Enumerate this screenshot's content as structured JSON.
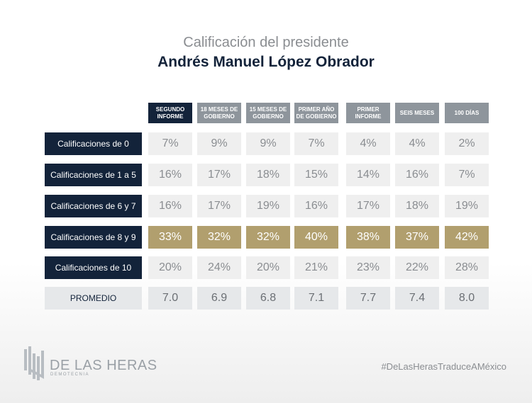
{
  "header": {
    "title_line1": "Calificación del presidente",
    "title_line2": "Andrés Manuel López Obrador"
  },
  "chart_data": {
    "type": "table",
    "columns": [
      "SEGUNDO INFORME",
      "18 MESES DE GOBIERNO",
      "15 MESES DE GOBIERNO",
      "PRIMER AÑO DE GOBIERNO",
      "PRIMER INFORME",
      "SEIS MESES",
      "100 DÍAS"
    ],
    "rows": [
      {
        "label": "Calificaciones de 0",
        "values": [
          "7%",
          "9%",
          "9%",
          "7%",
          "4%",
          "4%",
          "2%"
        ]
      },
      {
        "label": "Calificaciones de 1 a 5",
        "values": [
          "16%",
          "17%",
          "18%",
          "15%",
          "14%",
          "16%",
          "7%"
        ]
      },
      {
        "label": "Calificaciones de 6 y 7",
        "values": [
          "16%",
          "17%",
          "19%",
          "16%",
          "17%",
          "18%",
          "19%"
        ]
      },
      {
        "label": "Calificaciones de 8 y 9",
        "values": [
          "33%",
          "32%",
          "32%",
          "40%",
          "38%",
          "37%",
          "42%"
        ]
      },
      {
        "label": "Calificaciones de 10",
        "values": [
          "20%",
          "24%",
          "20%",
          "21%",
          "23%",
          "22%",
          "28%"
        ]
      },
      {
        "label": "PROMEDIO",
        "values": [
          "7.0",
          "6.9",
          "6.8",
          "7.1",
          "7.7",
          "7.4",
          "8.0"
        ]
      }
    ],
    "highlight_row": "Calificaciones de 8 y 9"
  },
  "colors": {
    "navy": "#13233a",
    "gold": "#b19f6e",
    "gray_header": "#8e959c",
    "cell_bg": "#efefef"
  },
  "footer": {
    "logo_name": "DE LAS HERAS",
    "logo_sub": "DEMOTECNIA",
    "logo_icon": "de-las-heras-mark-icon",
    "hashtag": "#DeLasHerasTraduceAMéxico"
  }
}
